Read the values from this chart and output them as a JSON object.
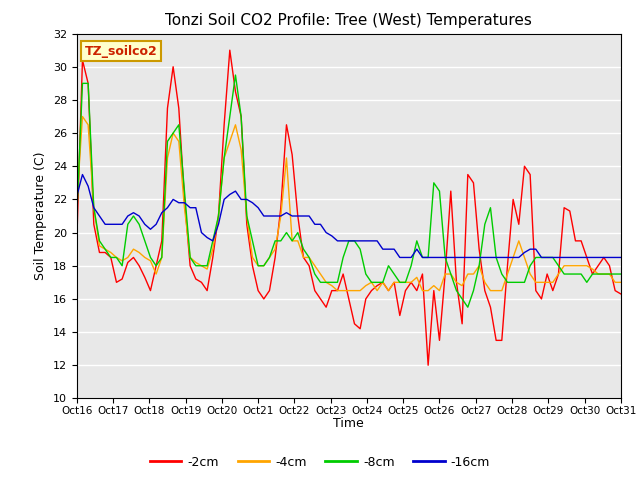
{
  "title": "Tonzi Soil CO2 Profile: Tree (West) Temperatures",
  "ylabel": "Soil Temperature (C)",
  "xlabel": "Time",
  "watermark": "TZ_soilco2",
  "ylim": [
    10,
    32
  ],
  "yticks": [
    10,
    12,
    14,
    16,
    18,
    20,
    22,
    24,
    26,
    28,
    30,
    32
  ],
  "xtick_labels": [
    "Oct 16",
    "Oct 17",
    "Oct 18",
    "Oct 19",
    "Oct 20",
    "Oct 21",
    "Oct 22",
    "Oct 23",
    "Oct 24",
    "Oct 25",
    "Oct 26",
    "Oct 27",
    "Oct 28",
    "Oct 29",
    "Oct 30",
    "Oct 31"
  ],
  "colors": {
    "-2cm": "#ff0000",
    "-4cm": "#ffa500",
    "-8cm": "#00cc00",
    "-16cm": "#0000cd"
  },
  "watermark_color": "#cc2200",
  "watermark_bg": "#ffffcc",
  "watermark_edge": "#cc9900",
  "bg_color": "#e8e8e8",
  "grid_color": "#ffffff",
  "legend_labels": [
    "-2cm",
    "-4cm",
    "-8cm",
    "-16cm"
  ],
  "series": {
    "-2cm": [
      19.5,
      30.4,
      29.0,
      20.5,
      18.8,
      18.8,
      18.5,
      17.0,
      17.2,
      18.2,
      18.5,
      18.0,
      17.3,
      16.5,
      18.0,
      19.5,
      27.5,
      30.0,
      27.5,
      22.0,
      18.0,
      17.2,
      17.0,
      16.5,
      18.5,
      21.0,
      26.5,
      31.0,
      28.5,
      27.0,
      20.5,
      18.0,
      16.5,
      16.0,
      16.5,
      18.5,
      21.5,
      26.5,
      24.7,
      21.0,
      18.5,
      18.0,
      16.5,
      16.0,
      15.5,
      16.5,
      16.5,
      17.5,
      16.0,
      14.5,
      14.2,
      16.0,
      16.5,
      16.8,
      17.0,
      16.5,
      17.0,
      15.0,
      16.5,
      17.0,
      16.5,
      17.5,
      12.0,
      16.5,
      13.5,
      17.5,
      22.5,
      17.0,
      14.5,
      23.5,
      23.0,
      19.0,
      16.5,
      15.5,
      13.5,
      13.5,
      18.0,
      22.0,
      20.5,
      24.0,
      23.5,
      16.5,
      16.0,
      17.5,
      16.5,
      17.5,
      21.5,
      21.3,
      19.5,
      19.5,
      18.5,
      17.5,
      18.0,
      18.5,
      18.0,
      16.5,
      16.3
    ],
    "-4cm": [
      21.8,
      27.0,
      26.5,
      21.5,
      19.2,
      19.0,
      18.8,
      18.5,
      18.3,
      18.5,
      19.0,
      18.8,
      18.5,
      18.3,
      17.5,
      18.5,
      24.5,
      26.0,
      25.5,
      21.5,
      18.5,
      18.2,
      18.0,
      17.8,
      19.0,
      21.0,
      24.5,
      25.5,
      26.5,
      25.0,
      21.0,
      18.5,
      18.0,
      18.0,
      18.5,
      19.0,
      21.0,
      24.5,
      19.5,
      19.5,
      18.5,
      18.5,
      18.0,
      17.5,
      17.0,
      16.8,
      16.5,
      16.5,
      16.5,
      16.5,
      16.5,
      16.8,
      17.0,
      16.5,
      17.0,
      16.5,
      17.0,
      17.0,
      17.0,
      17.0,
      17.3,
      16.5,
      16.5,
      16.8,
      16.5,
      17.5,
      17.5,
      17.0,
      16.8,
      17.5,
      17.5,
      18.0,
      17.0,
      16.5,
      16.5,
      16.5,
      17.5,
      18.5,
      19.5,
      18.5,
      17.5,
      17.0,
      17.0,
      17.0,
      17.0,
      17.5,
      18.0,
      18.0,
      18.0,
      18.0,
      18.0,
      17.8,
      17.5,
      17.5,
      17.5,
      17.0,
      17.0
    ],
    "-8cm": [
      21.0,
      29.0,
      29.0,
      21.5,
      19.5,
      19.0,
      18.5,
      18.5,
      18.0,
      20.5,
      21.0,
      20.5,
      19.5,
      18.5,
      18.0,
      18.5,
      25.5,
      26.0,
      26.5,
      22.5,
      18.5,
      18.0,
      18.0,
      18.0,
      19.5,
      21.0,
      24.5,
      27.0,
      29.5,
      27.0,
      21.0,
      19.5,
      18.0,
      18.0,
      18.5,
      19.5,
      19.5,
      20.0,
      19.5,
      20.0,
      19.0,
      18.5,
      17.5,
      17.0,
      17.0,
      17.0,
      17.0,
      18.5,
      19.5,
      19.5,
      19.0,
      17.5,
      17.0,
      17.0,
      17.0,
      18.0,
      17.5,
      17.0,
      17.0,
      18.0,
      19.5,
      18.5,
      18.5,
      23.0,
      22.5,
      18.5,
      17.5,
      16.5,
      16.0,
      15.5,
      16.5,
      18.0,
      20.5,
      21.5,
      18.5,
      17.5,
      17.0,
      17.0,
      17.0,
      17.0,
      18.0,
      18.5,
      18.5,
      18.5,
      18.5,
      18.0,
      17.5,
      17.5,
      17.5,
      17.5,
      17.0,
      17.5,
      17.5,
      17.5,
      17.5,
      17.5,
      17.5
    ],
    "-16cm": [
      22.2,
      23.5,
      22.8,
      21.5,
      21.0,
      20.5,
      20.5,
      20.5,
      20.5,
      21.0,
      21.2,
      21.0,
      20.5,
      20.2,
      20.5,
      21.2,
      21.5,
      22.0,
      21.8,
      21.8,
      21.5,
      21.5,
      20.0,
      19.7,
      19.5,
      20.5,
      22.0,
      22.3,
      22.5,
      22.0,
      22.0,
      21.8,
      21.5,
      21.0,
      21.0,
      21.0,
      21.0,
      21.2,
      21.0,
      21.0,
      21.0,
      21.0,
      20.5,
      20.5,
      20.0,
      19.8,
      19.5,
      19.5,
      19.5,
      19.5,
      19.5,
      19.5,
      19.5,
      19.5,
      19.0,
      19.0,
      19.0,
      18.5,
      18.5,
      18.5,
      19.0,
      18.5,
      18.5,
      18.5,
      18.5,
      18.5,
      18.5,
      18.5,
      18.5,
      18.5,
      18.5,
      18.5,
      18.5,
      18.5,
      18.5,
      18.5,
      18.5,
      18.5,
      18.5,
      18.8,
      19.0,
      19.0,
      18.5,
      18.5,
      18.5,
      18.5,
      18.5,
      18.5,
      18.5,
      18.5,
      18.5,
      18.5,
      18.5,
      18.5,
      18.5,
      18.5,
      18.5
    ]
  }
}
